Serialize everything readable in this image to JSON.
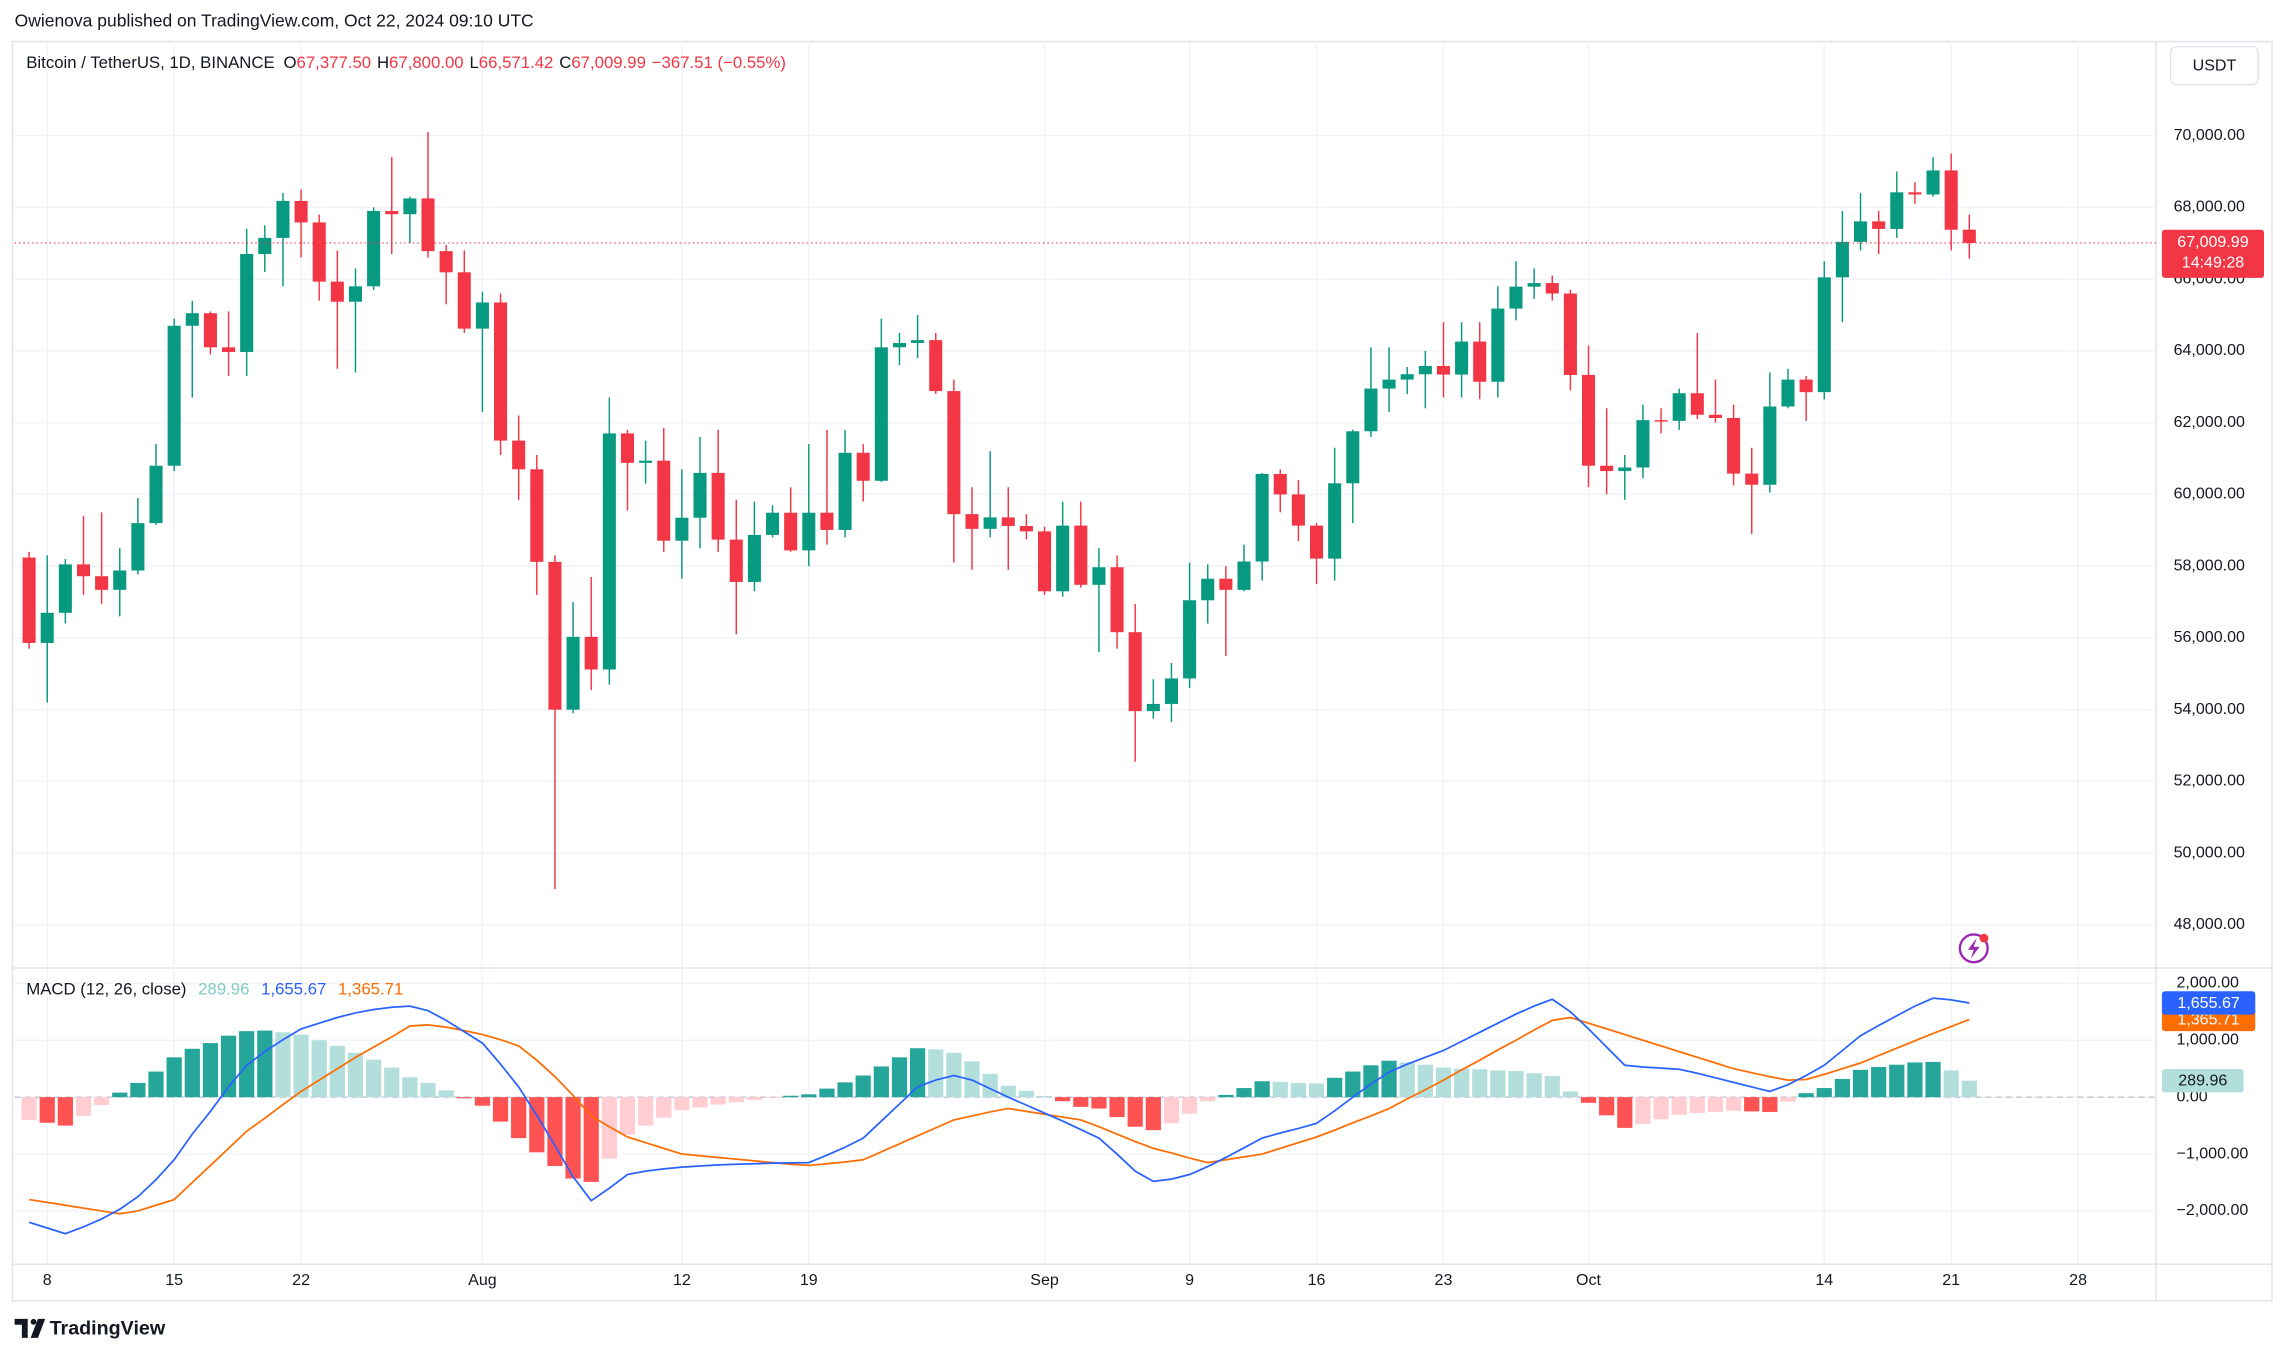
{
  "header": "Owienova published on TradingView.com, Oct 22, 2024 09:10 UTC",
  "currency_button": "USDT",
  "brand": "TradingView",
  "chart_data": [
    {
      "type": "candlestick",
      "title": "Bitcoin / TetherUS, 1D, BINANCE",
      "ohlc_legend": [
        {
          "key": "O",
          "value": "67,377.50"
        },
        {
          "key": "H",
          "value": "67,800.00"
        },
        {
          "key": "L",
          "value": "66,571.42"
        },
        {
          "key": "C",
          "value": "67,009.99"
        }
      ],
      "change_label": "−367.51 (−0.55%)",
      "last_price_label": "67,009.99",
      "countdown": "14:49:28",
      "up_color": "#089981",
      "down_color": "#f23645",
      "open": [
        58240,
        55860,
        56700,
        58050,
        57720,
        57340,
        57880,
        59200,
        60800,
        64700,
        65050,
        64100,
        63970,
        66700,
        67150,
        68180,
        67580,
        65930,
        65370,
        65800,
        67900,
        67810,
        68250,
        66780,
        66190,
        64620,
        65350,
        61500,
        60700,
        58120,
        54000,
        56030,
        55120,
        61700,
        60880,
        60940,
        58710,
        59350,
        60600,
        58740,
        57560,
        58870,
        59490,
        58440,
        59490,
        59010,
        61160,
        60380,
        64100,
        64220,
        64300,
        62880,
        59450,
        59040,
        59360,
        59120,
        58970,
        57300,
        59130,
        57480,
        57970,
        56160,
        53960,
        54160,
        54870,
        57050,
        57650,
        57340,
        58130,
        60570,
        60000,
        59130,
        58210,
        60310,
        61760,
        62950,
        63200,
        63350,
        63580,
        63340,
        64260,
        63140,
        65180,
        65790,
        65890,
        65600,
        63330,
        60800,
        60650,
        60750,
        62070,
        62050,
        62820,
        62220,
        62130,
        60580,
        60270,
        62450,
        63200,
        62850,
        66050,
        67040,
        67610,
        67400,
        68420,
        68360,
        69030,
        67377.5
      ],
      "high": [
        58400,
        58300,
        58200,
        59400,
        59500,
        58500,
        59900,
        61400,
        64900,
        65400,
        65100,
        65100,
        67400,
        67500,
        68400,
        68500,
        67800,
        66800,
        66300,
        68000,
        69400,
        68300,
        70100,
        66950,
        66800,
        65650,
        65600,
        62200,
        61100,
        58300,
        57000,
        57700,
        62700,
        61800,
        61500,
        61850,
        60700,
        61600,
        61800,
        59850,
        59800,
        59700,
        60200,
        61400,
        61800,
        61800,
        61400,
        64900,
        64500,
        65000,
        64500,
        63200,
        60200,
        61200,
        60200,
        59450,
        59100,
        59800,
        59800,
        58500,
        58300,
        56950,
        54850,
        55300,
        58100,
        58050,
        58000,
        58600,
        60600,
        60700,
        60400,
        59200,
        61300,
        61800,
        64100,
        64100,
        63550,
        64000,
        64800,
        64800,
        64800,
        65800,
        66500,
        66300,
        66100,
        65700,
        64150,
        62400,
        61100,
        62500,
        62400,
        62950,
        64500,
        63200,
        62500,
        61300,
        63400,
        63500,
        63300,
        66500,
        67900,
        68400,
        67900,
        69000,
        68700,
        69400,
        69500,
        67800
      ],
      "low": [
        55700,
        54200,
        56400,
        57200,
        56950,
        56600,
        57770,
        59150,
        60650,
        62700,
        63900,
        63300,
        63300,
        66200,
        65800,
        66600,
        65400,
        63500,
        63400,
        65700,
        66700,
        67000,
        66600,
        65300,
        64500,
        62300,
        61100,
        59850,
        57200,
        49000,
        53900,
        54550,
        54700,
        59550,
        60300,
        58400,
        57650,
        58500,
        58400,
        56100,
        57300,
        58800,
        58400,
        58000,
        58600,
        58800,
        59800,
        60350,
        63600,
        63800,
        62800,
        58100,
        57900,
        58800,
        57900,
        58750,
        57200,
        57150,
        57400,
        55600,
        55700,
        52550,
        53750,
        53650,
        54600,
        56400,
        55500,
        57300,
        57600,
        59500,
        58700,
        57500,
        57600,
        59200,
        61600,
        62300,
        62800,
        62400,
        62700,
        62700,
        62650,
        62700,
        64850,
        65450,
        65400,
        62900,
        60200,
        60000,
        59850,
        60450,
        61700,
        61800,
        62100,
        62000,
        60250,
        58900,
        60050,
        62400,
        62050,
        62650,
        64800,
        66800,
        66700,
        67150,
        68100,
        68300,
        66800,
        66571.42
      ],
      "close": [
        55860,
        56700,
        58050,
        57720,
        57340,
        57880,
        59200,
        60800,
        64700,
        65050,
        64100,
        63970,
        66700,
        67150,
        68180,
        67580,
        65930,
        65370,
        65800,
        67900,
        67810,
        68250,
        66780,
        66190,
        64620,
        65350,
        61500,
        60700,
        58120,
        54000,
        56030,
        55120,
        61700,
        60880,
        60940,
        58710,
        59350,
        60600,
        58740,
        57560,
        58870,
        59490,
        58440,
        59490,
        59010,
        61160,
        60380,
        64100,
        64220,
        64300,
        62880,
        59450,
        59040,
        59360,
        59120,
        58970,
        57300,
        59130,
        57480,
        57970,
        56160,
        53960,
        54160,
        54870,
        57050,
        57650,
        57340,
        58130,
        60570,
        60000,
        59130,
        58210,
        60310,
        61760,
        62950,
        63200,
        63350,
        63580,
        63340,
        64260,
        63140,
        65180,
        65790,
        65890,
        65600,
        63330,
        60800,
        60650,
        60750,
        62070,
        62050,
        62820,
        62220,
        62130,
        60580,
        60270,
        62450,
        63200,
        62850,
        66050,
        67040,
        67610,
        67400,
        68420,
        68360,
        69030,
        67377.5,
        67009.99
      ],
      "xlim": [
        -0.8,
        117.3
      ],
      "xticks": [
        {
          "value": 1,
          "label": "8"
        },
        {
          "value": 8,
          "label": "15"
        },
        {
          "value": 15,
          "label": "22"
        },
        {
          "value": 25,
          "label": "Aug"
        },
        {
          "value": 36,
          "label": "12"
        },
        {
          "value": 43,
          "label": "19"
        },
        {
          "value": 56,
          "label": "Sep"
        },
        {
          "value": 64,
          "label": "9"
        },
        {
          "value": 71,
          "label": "16"
        },
        {
          "value": 78,
          "label": "23"
        },
        {
          "value": 86,
          "label": "Oct"
        },
        {
          "value": 99,
          "label": "14"
        },
        {
          "value": 106,
          "label": "21"
        },
        {
          "value": 113,
          "label": "28"
        }
      ],
      "ylim": [
        46820,
        72560
      ],
      "yticks": [
        {
          "value": 48000,
          "label": "48,000.00"
        },
        {
          "value": 50000,
          "label": "50,000.00"
        },
        {
          "value": 52000,
          "label": "52,000.00"
        },
        {
          "value": 54000,
          "label": "54,000.00"
        },
        {
          "value": 56000,
          "label": "56,000.00"
        },
        {
          "value": 58000,
          "label": "58,000.00"
        },
        {
          "value": 60000,
          "label": "60,000.00"
        },
        {
          "value": 62000,
          "label": "62,000.00"
        },
        {
          "value": 64000,
          "label": "64,000.00"
        },
        {
          "value": 66000,
          "label": "66,000.00"
        },
        {
          "value": 68000,
          "label": "68,000.00"
        },
        {
          "value": 70000,
          "label": "70,000.00"
        }
      ],
      "grid": true
    },
    {
      "type": "macd",
      "title": "MACD (12, 26, close)",
      "histogram": {
        "colors": [
          "#26a69a",
          "#b2dfdb",
          "#ff5252",
          "#ffcdd2"
        ],
        "last_label": "289.96",
        "values": [
          -400,
          -450,
          -500,
          -330,
          -140,
          80,
          250,
          450,
          700,
          850,
          950,
          1080,
          1160,
          1170,
          1140,
          1100,
          1000,
          900,
          780,
          660,
          520,
          350,
          250,
          120,
          -20,
          -150,
          -430,
          -720,
          -970,
          -1210,
          -1430,
          -1490,
          -1080,
          -660,
          -500,
          -360,
          -230,
          -180,
          -130,
          -90,
          -50,
          -10,
          25,
          50,
          150,
          260,
          380,
          540,
          700,
          860,
          840,
          780,
          630,
          410,
          200,
          110,
          20,
          -70,
          -170,
          -200,
          -350,
          -520,
          -580,
          -460,
          -290,
          -70,
          40,
          160,
          280,
          270,
          250,
          240,
          340,
          450,
          560,
          640,
          610,
          570,
          520,
          500,
          490,
          470,
          460,
          420,
          370,
          100,
          -100,
          -320,
          -540,
          -470,
          -390,
          -310,
          -280,
          -260,
          -240,
          -250,
          -260,
          -80,
          70,
          160,
          320,
          480,
          530,
          570,
          610,
          620,
          470,
          289.96
        ]
      },
      "macd": {
        "color": "#2962ff",
        "last_label": "1,655.67",
        "values": [
          -2200,
          -2300,
          -2400,
          -2280,
          -2140,
          -1970,
          -1750,
          -1450,
          -1100,
          -650,
          -250,
          180,
          560,
          800,
          1010,
          1200,
          1300,
          1400,
          1480,
          1540,
          1580,
          1600,
          1520,
          1350,
          1150,
          950,
          580,
          180,
          -320,
          -850,
          -1400,
          -1820,
          -1600,
          -1360,
          -1300,
          -1260,
          -1230,
          -1210,
          -1190,
          -1180,
          -1170,
          -1160,
          -1155,
          -1150,
          -1020,
          -880,
          -720,
          -420,
          -120,
          180,
          300,
          380,
          300,
          150,
          0,
          -140,
          -280,
          -420,
          -570,
          -720,
          -1000,
          -1300,
          -1480,
          -1440,
          -1360,
          -1220,
          -1060,
          -890,
          -720,
          -630,
          -550,
          -460,
          -240,
          0,
          230,
          440,
          580,
          700,
          820,
          980,
          1140,
          1300,
          1460,
          1600,
          1720,
          1500,
          1200,
          880,
          560,
          530,
          510,
          490,
          420,
          340,
          260,
          180,
          100,
          220,
          380,
          560,
          820,
          1080,
          1260,
          1430,
          1600,
          1740,
          1710,
          1655.67
        ]
      },
      "signal": {
        "color": "#ff6d00",
        "last_label": "1,365.71",
        "values": [
          -1800,
          -1850,
          -1900,
          -1950,
          -2000,
          -2050,
          -2000,
          -1900,
          -1800,
          -1500,
          -1200,
          -900,
          -600,
          -370,
          -130,
          100,
          300,
          500,
          700,
          880,
          1060,
          1250,
          1270,
          1230,
          1170,
          1100,
          1010,
          900,
          650,
          360,
          30,
          -330,
          -520,
          -700,
          -800,
          -900,
          -1000,
          -1030,
          -1060,
          -1090,
          -1120,
          -1150,
          -1180,
          -1200,
          -1170,
          -1140,
          -1100,
          -960,
          -820,
          -680,
          -540,
          -400,
          -330,
          -260,
          -200,
          -250,
          -300,
          -350,
          -400,
          -520,
          -650,
          -780,
          -900,
          -980,
          -1070,
          -1150,
          -1100,
          -1050,
          -1000,
          -900,
          -800,
          -700,
          -580,
          -450,
          -330,
          -200,
          -30,
          130,
          300,
          480,
          650,
          830,
          1000,
          1180,
          1350,
          1400,
          1300,
          1200,
          1100,
          1000,
          900,
          800,
          700,
          600,
          500,
          430,
          360,
          300,
          310,
          400,
          500,
          600,
          730,
          860,
          990,
          1120,
          1240,
          1365.71
        ]
      },
      "ylim": [
        -2923,
        2231
      ],
      "yticks": [
        {
          "value": 2000,
          "label": "2,000.00"
        },
        {
          "value": 1000,
          "label": "1,000.00"
        },
        {
          "value": 0,
          "label": "0.00"
        },
        {
          "value": -1000,
          "label": "−1,000.00"
        },
        {
          "value": -2000,
          "label": "−2,000.00"
        }
      ],
      "grid": true
    }
  ]
}
